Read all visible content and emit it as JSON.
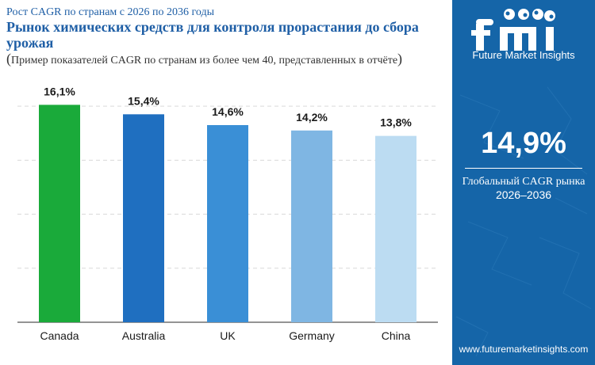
{
  "header": {
    "subtitle": "Рост CAGR по странам с 2026 по 2036 годы",
    "title": "Рынок химических средств для контроля прорастания до сбора урожая",
    "note_open": "(",
    "note": "Пример показателей CAGR по странам из более чем 40, представленных в отчёте",
    "note_close": ")"
  },
  "sidebar": {
    "logo_text": "Future Market Insights",
    "global_cagr_value": "14,9%",
    "global_cagr_label": "Глобальный CAGR рынка",
    "global_cagr_years": "2026–2036",
    "website": "www.futuremarketinsights.com"
  },
  "colors": {
    "accent": "#1565a8",
    "bar_canada": "#1aaa3a",
    "bar_australia": "#1f6fc0",
    "bar_uk": "#3a8fd6",
    "bar_germany": "#7fb6e3",
    "bar_china": "#bcdcf2"
  },
  "chart_data": {
    "type": "bar",
    "categories": [
      "Canada",
      "Australia",
      "UK",
      "Germany",
      "China"
    ],
    "values": [
      16.1,
      15.4,
      14.6,
      14.2,
      13.8
    ],
    "value_labels": [
      "16,1%",
      "15,4%",
      "14,6%",
      "14,2%",
      "13,8%"
    ],
    "bar_colors": [
      "#1aaa3a",
      "#1f6fc0",
      "#3a8fd6",
      "#7fb6e3",
      "#bcdcf2"
    ],
    "ylim": [
      0,
      18
    ],
    "grid": true,
    "xlabel": "",
    "ylabel": ""
  }
}
